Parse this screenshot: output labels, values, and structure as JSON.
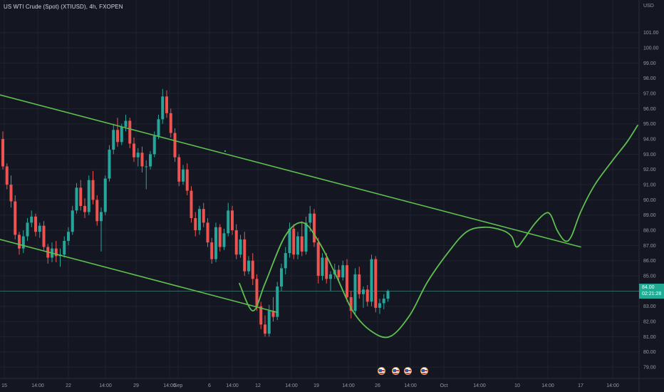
{
  "header": {
    "title": "US WTI Crude (Spot) (XTIUSD), 4h, FXOPEN",
    "currency": "USD"
  },
  "price_tag": {
    "price": "84.00",
    "countdown": "02:21:28"
  },
  "colors": {
    "background": "#141722",
    "up": "#26a69a",
    "down": "#ef5350",
    "drawing": "#5fbf4f",
    "price_tag": "#22ab94"
  },
  "events": [
    "us-flag-icon",
    "us-flag-icon",
    "us-flag-icon",
    "us-flag-icon"
  ],
  "chart_data": {
    "type": "candlestick",
    "title": "US WTI Crude (Spot) (XTIUSD), 4h, FXOPEN",
    "ylabel": "USD",
    "ylim": [
      78.3,
      102.3
    ],
    "y_ticks": [
      79.0,
      80.0,
      81.0,
      82.0,
      83.0,
      84.0,
      85.0,
      86.0,
      87.0,
      88.0,
      89.0,
      90.0,
      91.0,
      92.0,
      93.0,
      94.0,
      95.0,
      96.0,
      97.0,
      98.0,
      99.0,
      100.0,
      101.0
    ],
    "y_tick_labels": [
      "79.00",
      "80.00",
      "81.00",
      "82.00",
      "83.00",
      "84.00",
      "85.00",
      "86.00",
      "87.00",
      "88.00",
      "89.00",
      "90.00",
      "91.00",
      "92.00",
      "93.00",
      "94.00",
      "95.00",
      "96.00",
      "97.00",
      "98.00",
      "99.00",
      "100.00",
      "101.00"
    ],
    "x_tick_labels": [
      "15",
      "14:00",
      "22",
      "14:00",
      "29",
      "14:00",
      "Sep",
      "6",
      "14:00",
      "12",
      "14:00",
      "19",
      "14:00",
      "26",
      "14:00",
      "Oct",
      "14:00",
      "10",
      "14:00",
      "17",
      "14:00"
    ],
    "x_tick_bars": [
      6,
      53,
      96,
      148,
      191,
      238,
      250,
      294,
      326,
      362,
      409,
      444,
      489,
      530,
      576,
      623,
      673,
      726,
      769,
      815,
      860
    ],
    "last_price": 84.0,
    "trend_lines": [
      {
        "from": [
          0,
          96.9
        ],
        "to": [
          815,
          86.9
        ]
      },
      {
        "from": [
          0,
          87.4
        ],
        "to": [
          389,
          82.6
        ]
      }
    ],
    "projection": [
      [
        336,
        84.5
      ],
      [
        355,
        82.7
      ],
      [
        372,
        84.5
      ],
      [
        400,
        87.6
      ],
      [
        425,
        88.5
      ],
      [
        448,
        87.2
      ],
      [
        472,
        85.0
      ],
      [
        495,
        82.7
      ],
      [
        520,
        81.4
      ],
      [
        547,
        81.0
      ],
      [
        575,
        82.4
      ],
      [
        600,
        84.6
      ],
      [
        630,
        86.6
      ],
      [
        655,
        87.9
      ],
      [
        680,
        88.2
      ],
      [
        705,
        88.0
      ],
      [
        718,
        87.6
      ],
      [
        725,
        86.9
      ],
      [
        735,
        87.4
      ],
      [
        750,
        88.4
      ],
      [
        765,
        89.1
      ],
      [
        773,
        89.0
      ],
      [
        782,
        88.0
      ],
      [
        793,
        87.3
      ],
      [
        802,
        87.6
      ],
      [
        815,
        89.2
      ],
      [
        835,
        91.0
      ],
      [
        860,
        92.6
      ],
      [
        880,
        93.8
      ],
      [
        895,
        94.9
      ]
    ],
    "candles": [
      [
        94,
        94.5,
        92.0,
        92.2
      ],
      [
        92.2,
        92.4,
        90.7,
        91.0
      ],
      [
        91.0,
        91.6,
        89.5,
        89.9
      ],
      [
        89.9,
        90.3,
        87.4,
        87.7
      ],
      [
        87.7,
        87.9,
        86.4,
        86.8
      ],
      [
        86.8,
        88.0,
        86.5,
        87.6
      ],
      [
        87.6,
        88.8,
        87.3,
        88.5
      ],
      [
        88.5,
        89.3,
        88.2,
        88.9
      ],
      [
        88.9,
        89.1,
        87.6,
        87.9
      ],
      [
        87.9,
        88.5,
        87.5,
        88.3
      ],
      [
        88.3,
        88.6,
        86.7,
        86.9
      ],
      [
        86.9,
        87.1,
        85.8,
        86.2
      ],
      [
        86.2,
        87.2,
        85.9,
        86.8
      ],
      [
        86.8,
        87.3,
        85.9,
        86.3
      ],
      [
        86.3,
        86.8,
        85.6,
        86.4
      ],
      [
        86.4,
        87.6,
        86.2,
        87.3
      ],
      [
        87.3,
        88.2,
        87.0,
        87.9
      ],
      [
        87.9,
        89.6,
        87.7,
        89.3
      ],
      [
        89.3,
        91.1,
        89.1,
        90.8
      ],
      [
        90.8,
        91.3,
        89.3,
        89.6
      ],
      [
        89.6,
        90.1,
        88.8,
        89.2
      ],
      [
        89.2,
        91.6,
        89.0,
        91.3
      ],
      [
        91.3,
        91.9,
        89.7,
        90.0
      ],
      [
        90.0,
        90.3,
        88.3,
        88.6
      ],
      [
        88.6,
        89.5,
        86.6,
        89.2
      ],
      [
        89.2,
        91.6,
        89.0,
        91.4
      ],
      [
        91.4,
        93.6,
        91.2,
        93.3
      ],
      [
        93.3,
        95.0,
        93.0,
        94.6
      ],
      [
        94.6,
        95.4,
        93.5,
        93.8
      ],
      [
        93.8,
        95.0,
        93.6,
        94.8
      ],
      [
        94.8,
        95.6,
        94.5,
        95.2
      ],
      [
        95.2,
        95.4,
        93.4,
        93.7
      ],
      [
        93.7,
        94.1,
        92.5,
        92.8
      ],
      [
        92.8,
        93.4,
        92.2,
        93.1
      ],
      [
        93.1,
        93.5,
        91.8,
        92.2
      ],
      [
        92.2,
        92.6,
        90.7,
        92.2
      ],
      [
        92.2,
        93.2,
        92.0,
        93.0
      ],
      [
        93.0,
        94.5,
        92.8,
        94.2
      ],
      [
        94.2,
        95.6,
        94.0,
        95.3
      ],
      [
        95.3,
        97.3,
        95.0,
        96.8
      ],
      [
        96.8,
        97.2,
        95.4,
        95.7
      ],
      [
        95.7,
        96.0,
        94.1,
        94.4
      ],
      [
        94.4,
        94.7,
        92.5,
        92.8
      ],
      [
        92.8,
        93.0,
        90.9,
        91.2
      ],
      [
        91.2,
        92.3,
        91.0,
        92.0
      ],
      [
        92.0,
        92.4,
        90.3,
        90.6
      ],
      [
        90.6,
        90.9,
        88.5,
        88.8
      ],
      [
        88.8,
        89.2,
        87.6,
        88.0
      ],
      [
        88.0,
        89.6,
        87.7,
        89.4
      ],
      [
        89.4,
        89.8,
        88.2,
        88.5
      ],
      [
        88.5,
        88.8,
        86.9,
        87.2
      ],
      [
        87.2,
        87.5,
        85.8,
        86.1
      ],
      [
        86.1,
        88.5,
        85.9,
        88.2
      ],
      [
        88.2,
        88.4,
        86.6,
        86.9
      ],
      [
        86.9,
        88.1,
        86.7,
        87.8
      ],
      [
        87.8,
        89.8,
        87.6,
        89.3
      ],
      [
        89.3,
        89.6,
        87.7,
        88.0
      ],
      [
        88.0,
        88.4,
        86.1,
        86.4
      ],
      [
        86.4,
        87.7,
        86.2,
        87.4
      ],
      [
        87.4,
        87.9,
        85.0,
        85.3
      ],
      [
        85.3,
        86.3,
        85.1,
        86.0
      ],
      [
        86.0,
        86.5,
        84.4,
        84.8
      ],
      [
        84.8,
        85.1,
        82.7,
        83.0
      ],
      [
        83.0,
        83.3,
        81.5,
        81.8
      ],
      [
        81.8,
        82.4,
        81.0,
        81.2
      ],
      [
        81.2,
        83.1,
        81.0,
        82.7
      ],
      [
        82.7,
        83.6,
        82.0,
        82.3
      ],
      [
        82.3,
        84.6,
        82.1,
        84.3
      ],
      [
        84.3,
        85.8,
        84.0,
        85.5
      ],
      [
        85.5,
        86.9,
        85.1,
        86.5
      ],
      [
        86.5,
        88.5,
        86.2,
        88.1
      ],
      [
        88.1,
        88.4,
        86.1,
        86.4
      ],
      [
        86.4,
        87.9,
        86.1,
        87.6
      ],
      [
        87.6,
        88.6,
        86.3,
        86.6
      ],
      [
        86.6,
        88.9,
        86.4,
        88.5
      ],
      [
        88.5,
        89.6,
        87.9,
        89.1
      ],
      [
        89.1,
        89.4,
        86.9,
        87.2
      ],
      [
        87.2,
        87.5,
        84.5,
        85.0
      ],
      [
        85.0,
        86.5,
        84.7,
        86.2
      ],
      [
        86.2,
        86.5,
        84.5,
        84.8
      ],
      [
        84.8,
        85.3,
        84.0,
        85.1
      ],
      [
        85.1,
        85.8,
        84.8,
        85.4
      ],
      [
        85.4,
        85.7,
        84.6,
        84.9
      ],
      [
        84.9,
        86.0,
        84.7,
        85.7
      ],
      [
        85.7,
        86.1,
        83.3,
        83.6
      ],
      [
        83.6,
        84.0,
        82.2,
        82.7
      ],
      [
        82.7,
        85.5,
        82.5,
        85.1
      ],
      [
        85.1,
        85.6,
        83.5,
        83.8
      ],
      [
        83.8,
        84.3,
        82.9,
        84.1
      ],
      [
        84.1,
        84.4,
        83.0,
        83.3
      ],
      [
        83.3,
        86.4,
        83.0,
        86.1
      ],
      [
        86.1,
        86.3,
        82.6,
        82.9
      ],
      [
        82.9,
        83.5,
        82.5,
        83.2
      ],
      [
        83.2,
        83.8,
        82.8,
        83.5
      ],
      [
        83.5,
        84.1,
        83.3,
        84.0
      ]
    ]
  }
}
